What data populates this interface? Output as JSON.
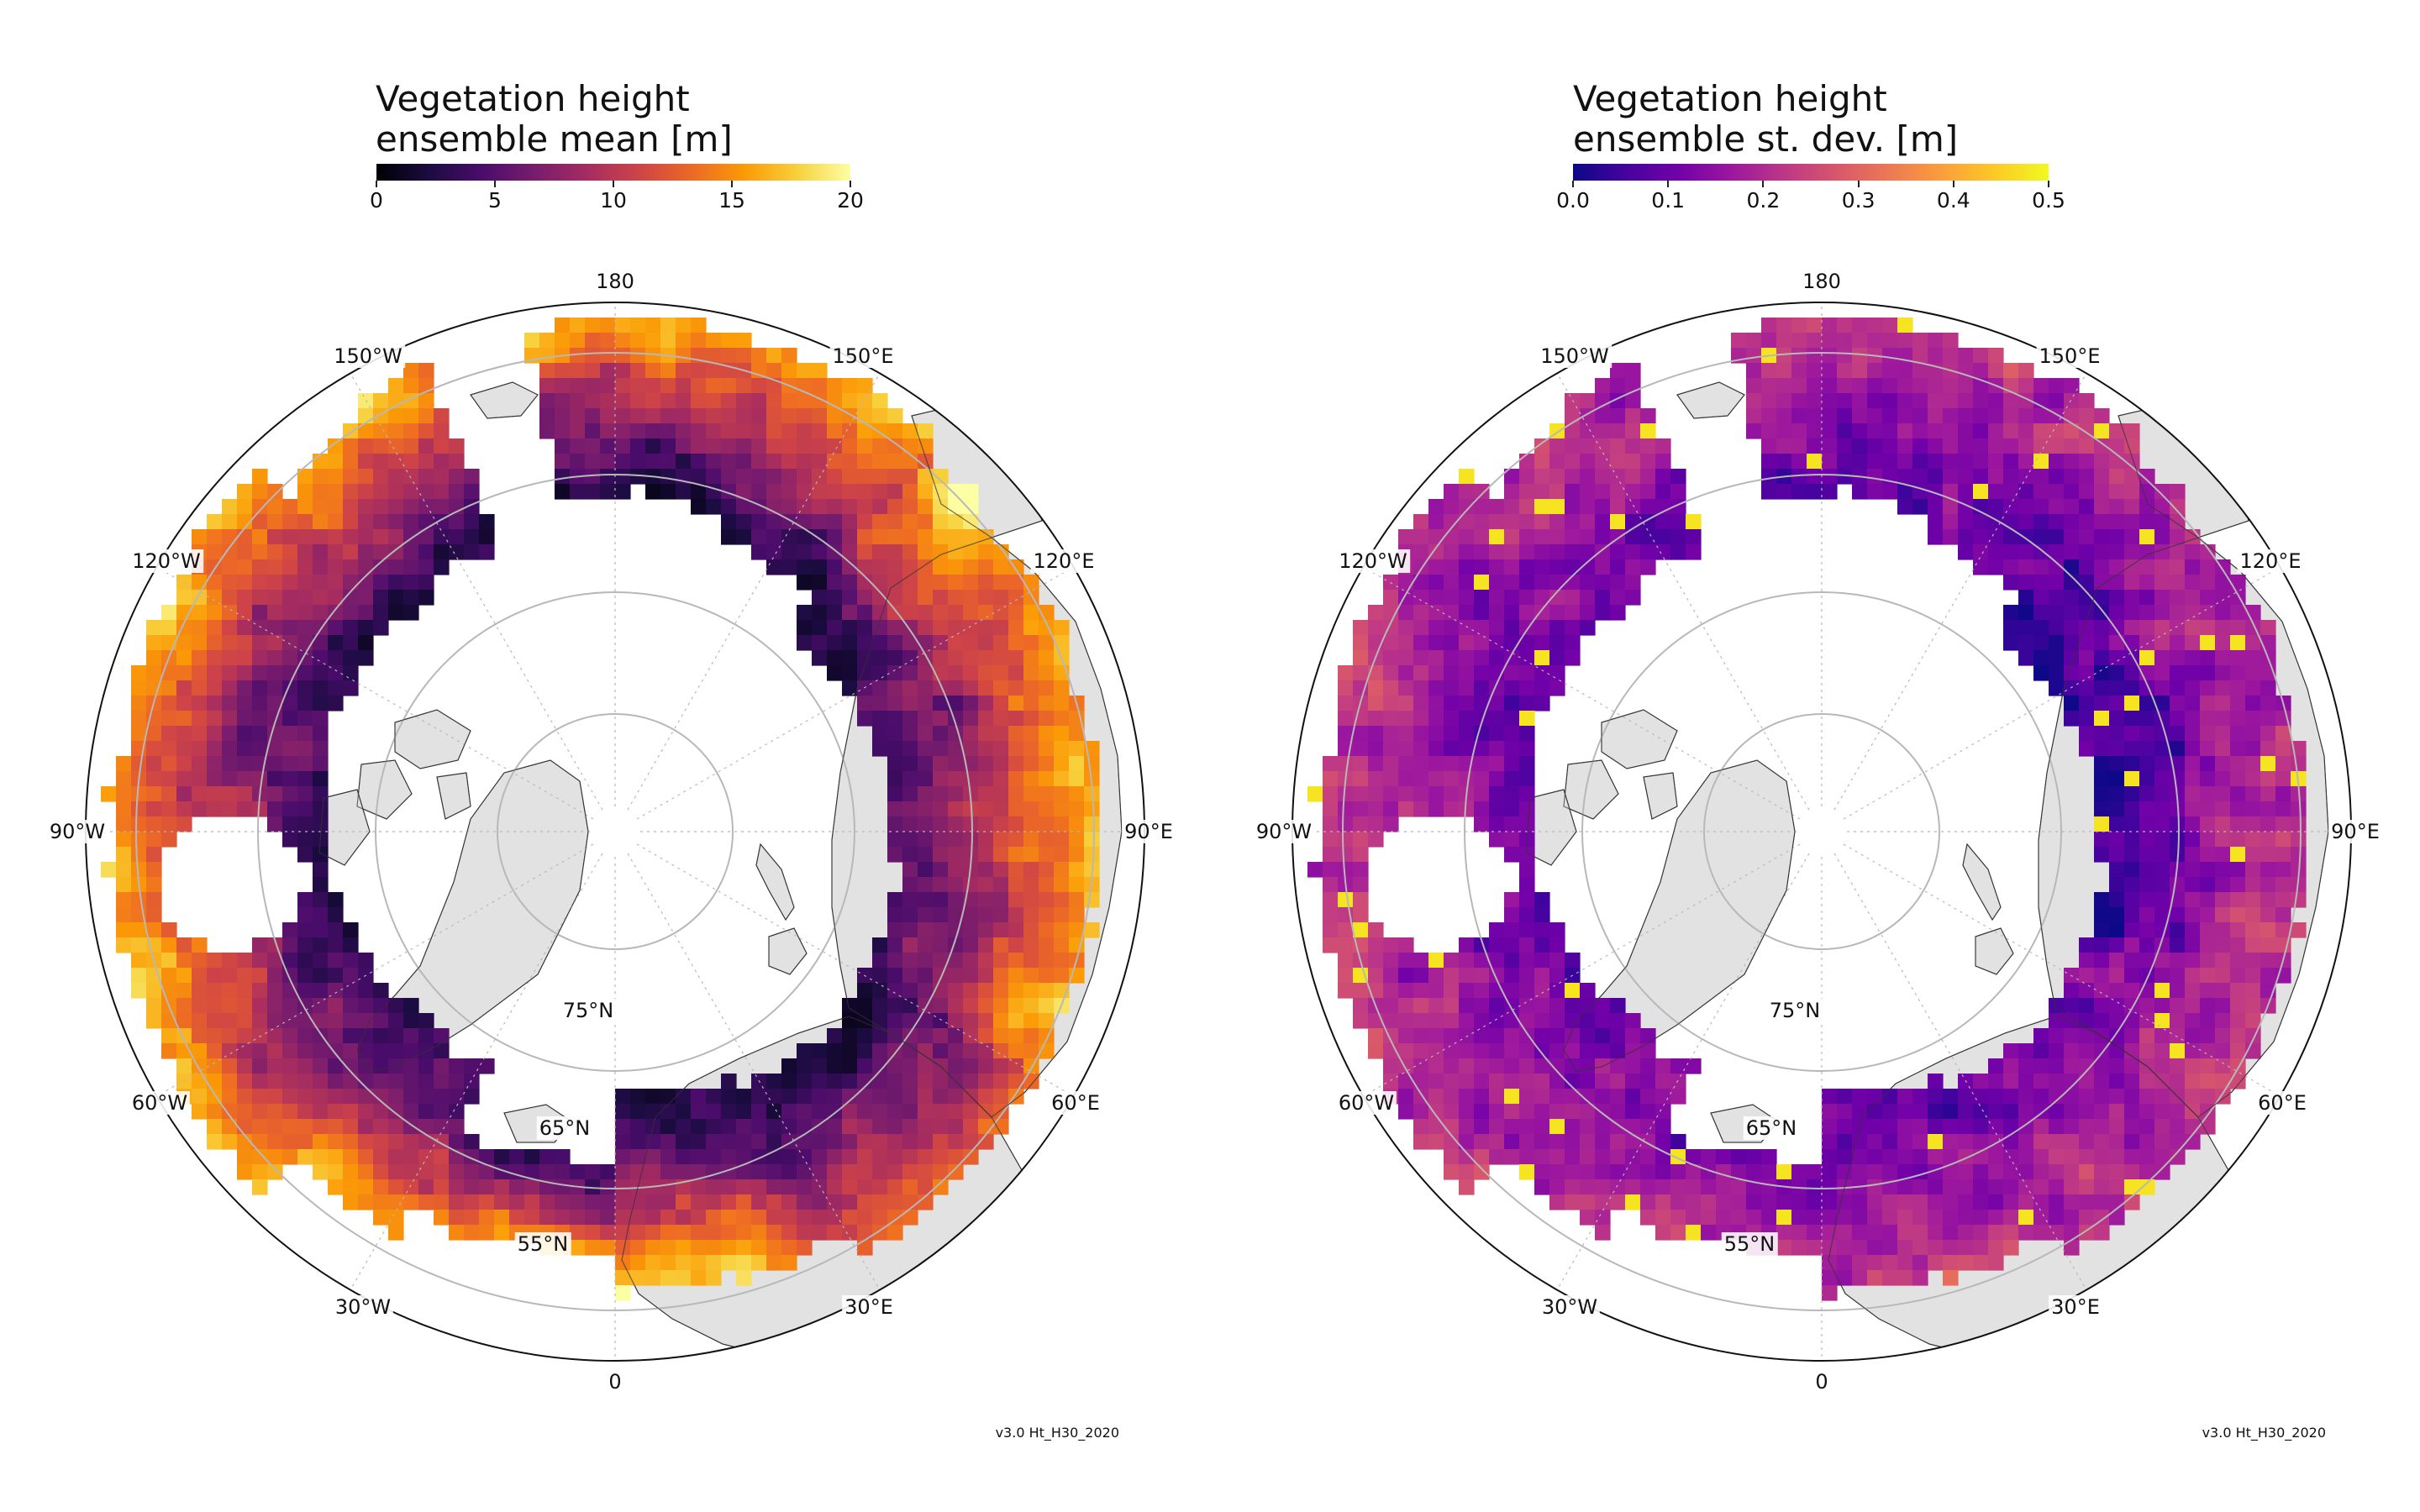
{
  "panels": [
    {
      "id": "left",
      "title_line1": "Vegetation height",
      "title_line2": "ensemble mean [m]",
      "colormap": "inferno",
      "colorbar_ticks": [
        "0",
        "5",
        "10",
        "15",
        "20"
      ],
      "colorbar_range": [
        0,
        20
      ],
      "version_label": "v3.0 Ht_H30_2020"
    },
    {
      "id": "right",
      "title_line1": "Vegetation height",
      "title_line2": "ensemble st. dev. [m]",
      "colormap": "plasma",
      "colorbar_ticks": [
        "0.0",
        "0.1",
        "0.2",
        "0.3",
        "0.4",
        "0.5"
      ],
      "colorbar_range": [
        0,
        0.5
      ],
      "version_label": "v3.0 Ht_H30_2020"
    }
  ],
  "longitude_labels": {
    "lon_180": "180",
    "lon_150e": "150°E",
    "lon_120e": "120°E",
    "lon_90e": "90°E",
    "lon_60e": "60°E",
    "lon_30e": "30°E",
    "lon_0": "0",
    "lon_30w": "30°W",
    "lon_60w": "60°W",
    "lon_90w": "90°W",
    "lon_120w": "120°W",
    "lon_150w": "150°W"
  },
  "latitude_labels": {
    "lat_75": "75°N",
    "lat_65": "65°N",
    "lat_55": "55°N"
  },
  "colors": {
    "land": "#e2e2e2",
    "ocean": "#ffffff",
    "coastline": "#333333",
    "gridline": "#b8b8b8",
    "inferno": [
      "#000004",
      "#1b0c41",
      "#4a0c6b",
      "#781c6d",
      "#a52c60",
      "#cf4446",
      "#ed6925",
      "#fb9b06",
      "#f7d13d",
      "#fcffa4"
    ],
    "plasma": [
      "#0d0887",
      "#46039f",
      "#7201a8",
      "#9c179e",
      "#bd3786",
      "#d8576b",
      "#ed7953",
      "#fb9f3a",
      "#fdca26",
      "#f0f921"
    ]
  }
}
